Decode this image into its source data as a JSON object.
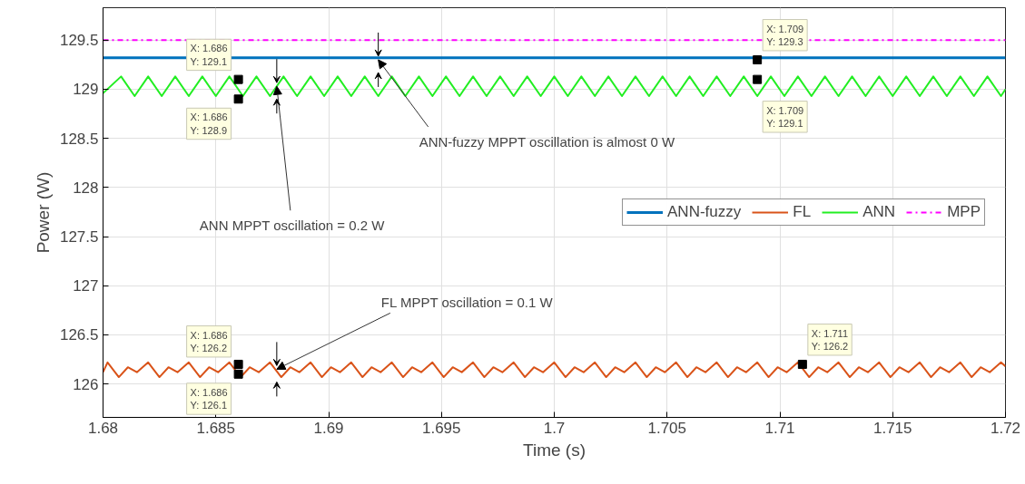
{
  "chart_data": {
    "type": "line",
    "xlabel": "Time (s)",
    "ylabel": "Power (W)",
    "xlim": [
      1.68,
      1.72
    ],
    "ylim": [
      125.66,
      129.83
    ],
    "xticks": [
      1.68,
      1.685,
      1.69,
      1.695,
      1.7,
      1.705,
      1.71,
      1.715,
      1.72
    ],
    "yticks": [
      126,
      126.5,
      127,
      127.5,
      128,
      128.5,
      129,
      129.5
    ],
    "grid": true,
    "legend": "right",
    "series": [
      {
        "name": "ANN-fuzzy",
        "color": "#0072bd",
        "line_style": "solid",
        "x": [
          1.68,
          1.72
        ],
        "values": [
          129.32,
          129.32
        ]
      },
      {
        "name": "FL",
        "color": "#d95319",
        "line_style": "solid",
        "x": [
          1.68,
          1.6802,
          1.6807,
          1.6811,
          1.6815,
          1.682,
          1.6825,
          1.6829,
          1.6833,
          1.6838,
          1.6843,
          1.6847,
          1.6851,
          1.6856,
          1.6861,
          1.6865,
          1.6869,
          1.6874,
          1.6879,
          1.6883,
          1.6887,
          1.6892,
          1.6897,
          1.6901,
          1.6905,
          1.691,
          1.6915,
          1.6919,
          1.6923,
          1.6928,
          1.6933,
          1.6937,
          1.6941,
          1.6946,
          1.6951,
          1.6955,
          1.6959,
          1.6964,
          1.6969,
          1.6973,
          1.6977,
          1.6982,
          1.6987,
          1.6991,
          1.6995,
          1.7,
          1.7005,
          1.7009,
          1.7013,
          1.7018,
          1.7023,
          1.7027,
          1.7031,
          1.7036,
          1.7041,
          1.7045,
          1.7049,
          1.7054,
          1.7059,
          1.7063,
          1.7067,
          1.7072,
          1.7077,
          1.7081,
          1.7085,
          1.709,
          1.7095,
          1.7099,
          1.7103,
          1.7108,
          1.7113,
          1.7117,
          1.7121,
          1.7126,
          1.7131,
          1.7135,
          1.7139,
          1.7144,
          1.7149,
          1.7153,
          1.7157,
          1.7162,
          1.7167,
          1.7171,
          1.7175,
          1.718,
          1.7185,
          1.7189,
          1.7193,
          1.7198,
          1.72
        ],
        "values": [
          126.12,
          126.22,
          126.07,
          126.17,
          126.12,
          126.22,
          126.07,
          126.17,
          126.12,
          126.22,
          126.07,
          126.17,
          126.12,
          126.22,
          126.07,
          126.17,
          126.12,
          126.22,
          126.07,
          126.17,
          126.12,
          126.22,
          126.07,
          126.17,
          126.12,
          126.22,
          126.07,
          126.17,
          126.12,
          126.22,
          126.07,
          126.17,
          126.12,
          126.22,
          126.07,
          126.17,
          126.12,
          126.22,
          126.07,
          126.17,
          126.12,
          126.22,
          126.07,
          126.17,
          126.12,
          126.22,
          126.07,
          126.17,
          126.12,
          126.22,
          126.07,
          126.17,
          126.12,
          126.22,
          126.07,
          126.17,
          126.12,
          126.22,
          126.07,
          126.17,
          126.12,
          126.22,
          126.07,
          126.17,
          126.12,
          126.22,
          126.07,
          126.17,
          126.12,
          126.22,
          126.07,
          126.17,
          126.12,
          126.22,
          126.07,
          126.17,
          126.12,
          126.22,
          126.07,
          126.17,
          126.12,
          126.22,
          126.07,
          126.17,
          126.12,
          126.22,
          126.07,
          126.17,
          126.12,
          126.22,
          126.18
        ]
      },
      {
        "name": "ANN",
        "color": "#22ee22",
        "line_style": "solid",
        "x": [
          1.68,
          1.6808,
          1.6814,
          1.682,
          1.6826,
          1.6832,
          1.6838,
          1.6844,
          1.685,
          1.6856,
          1.6862,
          1.6868,
          1.6874,
          1.688,
          1.6886,
          1.6892,
          1.6898,
          1.6904,
          1.691,
          1.6916,
          1.6922,
          1.6928,
          1.6934,
          1.694,
          1.6946,
          1.6952,
          1.6958,
          1.6964,
          1.697,
          1.6976,
          1.6982,
          1.6988,
          1.6994,
          1.7,
          1.7006,
          1.7012,
          1.7018,
          1.7024,
          1.703,
          1.7036,
          1.7042,
          1.7048,
          1.7054,
          1.706,
          1.7066,
          1.7072,
          1.7078,
          1.7084,
          1.709,
          1.7096,
          1.7102,
          1.7108,
          1.7114,
          1.712,
          1.7126,
          1.7132,
          1.7138,
          1.7144,
          1.715,
          1.7156,
          1.7162,
          1.7168,
          1.7174,
          1.718,
          1.7186,
          1.7192,
          1.7198,
          1.72
        ],
        "values": [
          128.96,
          129.13,
          128.93,
          129.13,
          128.93,
          129.13,
          128.93,
          129.13,
          128.93,
          129.13,
          128.93,
          129.13,
          128.93,
          129.13,
          128.93,
          129.13,
          128.93,
          129.13,
          128.93,
          129.13,
          128.93,
          129.13,
          128.93,
          129.13,
          128.93,
          129.13,
          128.93,
          129.13,
          128.93,
          129.13,
          128.93,
          129.13,
          128.93,
          129.13,
          128.93,
          129.13,
          128.93,
          129.13,
          128.93,
          129.13,
          128.93,
          129.13,
          128.93,
          129.13,
          128.93,
          129.13,
          128.93,
          129.13,
          128.93,
          129.13,
          128.93,
          129.13,
          128.93,
          129.13,
          128.93,
          129.13,
          128.93,
          129.13,
          128.93,
          129.13,
          128.93,
          129.13,
          128.93,
          129.13,
          128.93,
          129.13,
          128.93,
          129.0
        ]
      },
      {
        "name": "MPP",
        "color": "#ff00ff",
        "line_style": "dashdot",
        "x": [
          1.68,
          1.72
        ],
        "values": [
          129.5,
          129.5
        ]
      }
    ],
    "annotations": [
      {
        "text": "X: 1.686\nY: 129.1",
        "x": 1.686,
        "y": 129.1
      },
      {
        "text": "X: 1.686\nY: 128.9",
        "x": 1.686,
        "y": 128.9
      },
      {
        "text": "X: 1.709\nY: 129.3",
        "x": 1.709,
        "y": 129.3
      },
      {
        "text": "X: 1.709\nY: 129.1",
        "x": 1.709,
        "y": 129.1
      },
      {
        "text": "X: 1.686\nY: 126.2",
        "x": 1.686,
        "y": 126.2
      },
      {
        "text": "X: 1.686\nY: 126.1",
        "x": 1.686,
        "y": 126.1
      },
      {
        "text": "X: 1.711\nY: 126.2",
        "x": 1.711,
        "y": 126.2
      },
      {
        "text": "ANN-fuzzy MPPT oscillation is almost 0 W",
        "x": 1.6922,
        "y": 129.3
      },
      {
        "text": "ANN MPPT oscillation = 0.2 W",
        "x": 1.6877,
        "y": 129.03
      },
      {
        "text": "FL MPPT oscillation = 0.1 W",
        "x": 1.6877,
        "y": 126.15
      }
    ]
  }
}
